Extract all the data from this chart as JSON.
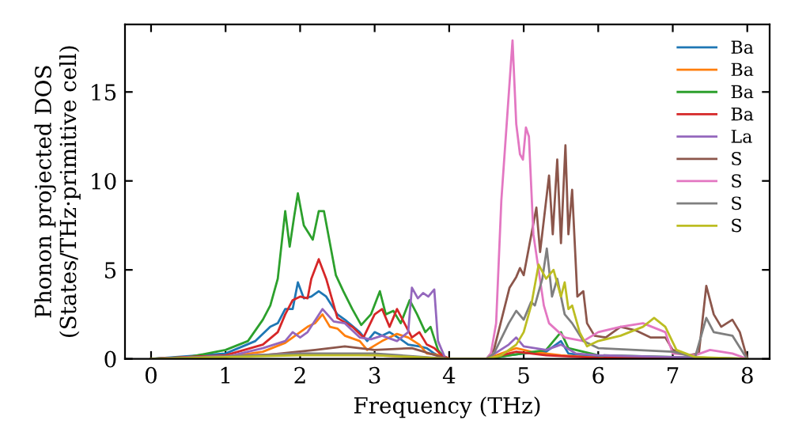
{
  "chart_data": {
    "type": "line",
    "xlabel": "Frequency (THz)",
    "ylabel": "Phonon projected DOS\n(States/THz·primitive cell)",
    "xlim": [
      -0.35,
      8.3
    ],
    "ylim": [
      0,
      18.8
    ],
    "xticks": [
      0,
      1,
      2,
      3,
      4,
      5,
      6,
      7,
      8
    ],
    "yticks": [
      0,
      5,
      10,
      15
    ],
    "grid": false,
    "legend": "top right",
    "marker": "none",
    "line_style": "solid",
    "series": [
      {
        "name": "Ba",
        "color": "#1f77b4",
        "x": [
          0,
          1.0,
          1.4,
          1.6,
          1.7,
          1.8,
          1.9,
          1.97,
          2.05,
          2.15,
          2.25,
          2.35,
          2.5,
          2.6,
          2.8,
          2.9,
          3.0,
          3.1,
          3.2,
          3.35,
          3.45,
          3.6,
          3.7,
          3.8,
          3.95,
          4.5,
          4.8,
          5.0,
          5.3,
          5.5,
          5.6,
          6.0,
          8.0
        ],
        "values": [
          0,
          0.3,
          1.0,
          1.8,
          2.0,
          2.8,
          2.8,
          4.3,
          3.4,
          3.5,
          3.8,
          3.5,
          2.5,
          2.2,
          1.5,
          1.0,
          1.5,
          1.3,
          1.5,
          1.1,
          0.8,
          0.7,
          0.6,
          0.3,
          0,
          0,
          0.2,
          0.3,
          0.4,
          1.0,
          0.3,
          0.1,
          0
        ]
      },
      {
        "name": "Ba",
        "color": "#ff7f0e",
        "x": [
          0,
          1.0,
          1.5,
          1.8,
          2.0,
          2.1,
          2.2,
          2.3,
          2.4,
          2.5,
          2.6,
          2.8,
          2.9,
          3.1,
          3.3,
          3.45,
          3.6,
          3.7,
          3.9,
          4.0,
          4.5,
          4.7,
          4.9,
          5.1,
          5.5,
          6.0,
          8.0
        ],
        "values": [
          0,
          0.1,
          0.4,
          0.9,
          1.5,
          1.8,
          2.0,
          2.5,
          1.8,
          1.7,
          1.3,
          1.0,
          0.5,
          1.0,
          1.4,
          1.2,
          0.8,
          0.3,
          0.2,
          0,
          0,
          0.3,
          0.6,
          0.4,
          0.2,
          0.05,
          0
        ]
      },
      {
        "name": "Ba",
        "color": "#2ca02c",
        "x": [
          0,
          0.5,
          1.0,
          1.3,
          1.5,
          1.6,
          1.7,
          1.8,
          1.86,
          1.92,
          1.97,
          2.05,
          2.17,
          2.25,
          2.32,
          2.4,
          2.48,
          2.58,
          2.7,
          2.82,
          2.95,
          3.07,
          3.15,
          3.25,
          3.35,
          3.47,
          3.57,
          3.68,
          3.75,
          3.85,
          3.95,
          4.5,
          5.3,
          5.5,
          5.6,
          6.0,
          8.0
        ],
        "values": [
          0,
          0.1,
          0.5,
          1.0,
          2.2,
          3.0,
          4.5,
          8.3,
          6.3,
          8.0,
          9.3,
          7.5,
          6.7,
          8.3,
          8.3,
          6.5,
          4.7,
          3.8,
          2.8,
          1.9,
          2.5,
          3.8,
          2.5,
          2.7,
          2.0,
          3.3,
          2.5,
          1.5,
          1.8,
          0.5,
          0,
          0,
          0.5,
          1.5,
          0.6,
          0.2,
          0
        ]
      },
      {
        "name": "Ba",
        "color": "#d62728",
        "x": [
          0,
          1.0,
          1.5,
          1.7,
          1.8,
          1.9,
          2.0,
          2.1,
          2.15,
          2.25,
          2.35,
          2.5,
          2.7,
          2.85,
          3.0,
          3.1,
          3.2,
          3.3,
          3.4,
          3.5,
          3.6,
          3.7,
          3.8,
          3.9,
          4.0,
          4.5,
          4.9,
          5.3,
          6.0,
          8.0
        ],
        "values": [
          0,
          0.2,
          0.8,
          1.5,
          2.5,
          3.3,
          3.5,
          3.4,
          4.5,
          5.6,
          4.5,
          2.3,
          1.8,
          1.2,
          2.5,
          2.8,
          1.8,
          2.8,
          2.0,
          1.2,
          1.5,
          0.8,
          0.6,
          0.2,
          0,
          0,
          0.4,
          0.2,
          0.05,
          0
        ]
      },
      {
        "name": "La",
        "color": "#9467bd",
        "x": [
          0,
          1.0,
          1.5,
          1.8,
          1.9,
          2.0,
          2.1,
          2.3,
          2.45,
          2.6,
          2.8,
          2.95,
          3.1,
          3.3,
          3.45,
          3.5,
          3.58,
          3.65,
          3.72,
          3.8,
          3.85,
          3.95,
          4.5,
          4.8,
          4.9,
          5.0,
          5.3,
          5.5,
          5.7,
          6.0,
          7.0,
          8.0
        ],
        "values": [
          0,
          0.1,
          0.6,
          1.0,
          1.5,
          1.2,
          1.5,
          2.8,
          2.1,
          2.0,
          1.2,
          1.1,
          1.3,
          1.0,
          1.5,
          4.0,
          3.4,
          3.7,
          3.5,
          3.9,
          1.0,
          0,
          0,
          0.8,
          1.2,
          0.7,
          0.5,
          0.8,
          0.3,
          0.2,
          0.1,
          0
        ]
      },
      {
        "name": "S",
        "color": "#8c564b",
        "x": [
          0,
          1.5,
          2.2,
          2.6,
          3.0,
          3.5,
          3.9,
          4.0,
          4.5,
          4.6,
          4.81,
          4.9,
          4.95,
          5.0,
          5.17,
          5.22,
          5.34,
          5.39,
          5.45,
          5.5,
          5.56,
          5.6,
          5.65,
          5.72,
          5.8,
          5.85,
          5.95,
          6.1,
          6.3,
          6.5,
          6.7,
          6.9,
          7.0,
          7.2,
          7.35,
          7.45,
          7.55,
          7.65,
          7.8,
          7.9,
          8.0
        ],
        "values": [
          0,
          0.2,
          0.5,
          0.7,
          0.5,
          0.6,
          0.1,
          0,
          0,
          0.5,
          4.0,
          4.6,
          5.1,
          4.7,
          8.5,
          6.0,
          10.3,
          7.0,
          11.2,
          6.5,
          12.0,
          7.0,
          9.5,
          3.5,
          3.8,
          2.0,
          1.3,
          1.2,
          1.8,
          1.6,
          1.2,
          1.2,
          0.5,
          0.2,
          0.3,
          4.1,
          2.5,
          1.8,
          2.2,
          1.5,
          0
        ]
      },
      {
        "name": "S",
        "color": "#e377c2",
        "x": [
          0,
          2.0,
          3.0,
          4.0,
          4.5,
          4.56,
          4.63,
          4.7,
          4.85,
          4.9,
          4.95,
          4.99,
          5.03,
          5.07,
          5.13,
          5.2,
          5.27,
          5.34,
          5.55,
          5.8,
          6.0,
          6.3,
          6.6,
          6.9,
          7.0,
          7.3,
          7.5,
          7.8,
          8.0
        ],
        "values": [
          0,
          0.3,
          0.2,
          0,
          0,
          0.3,
          2.0,
          8.9,
          17.9,
          13.2,
          11.5,
          11.2,
          13.0,
          12.5,
          7.0,
          5.0,
          3.0,
          2.0,
          1.2,
          1.0,
          1.5,
          1.8,
          2.0,
          1.5,
          0.3,
          0.2,
          0.5,
          0.3,
          0
        ]
      },
      {
        "name": "S",
        "color": "#7f7f7f",
        "x": [
          0,
          2.0,
          3.0,
          4.0,
          4.5,
          4.6,
          4.8,
          4.9,
          5.0,
          5.1,
          5.15,
          5.25,
          5.31,
          5.38,
          5.45,
          5.55,
          5.65,
          5.8,
          6.0,
          6.5,
          7.0,
          7.3,
          7.45,
          7.55,
          7.8,
          7.95,
          8.0
        ],
        "values": [
          0,
          0.3,
          0.3,
          0,
          0,
          0.3,
          2.0,
          2.7,
          2.2,
          3.2,
          3.0,
          4.5,
          6.2,
          3.5,
          4.5,
          2.5,
          2.0,
          1.0,
          0.6,
          0.5,
          0.4,
          0.1,
          2.3,
          1.5,
          1.3,
          0.3,
          0
        ]
      },
      {
        "name": "S",
        "color": "#bcbd22",
        "x": [
          0,
          2.0,
          3.0,
          4.0,
          4.5,
          4.7,
          4.9,
          5.0,
          5.1,
          5.2,
          5.3,
          5.4,
          5.5,
          5.55,
          5.6,
          5.65,
          5.75,
          5.85,
          6.0,
          6.3,
          6.6,
          6.75,
          6.9,
          7.05,
          7.3,
          8.0
        ],
        "values": [
          0,
          0.2,
          0.2,
          0,
          0,
          0.2,
          0.8,
          1.5,
          3.0,
          5.3,
          4.5,
          5.0,
          3.5,
          4.3,
          2.8,
          3.0,
          1.5,
          0.7,
          1.0,
          1.3,
          1.8,
          2.3,
          1.8,
          0.5,
          0.1,
          0
        ]
      }
    ]
  }
}
